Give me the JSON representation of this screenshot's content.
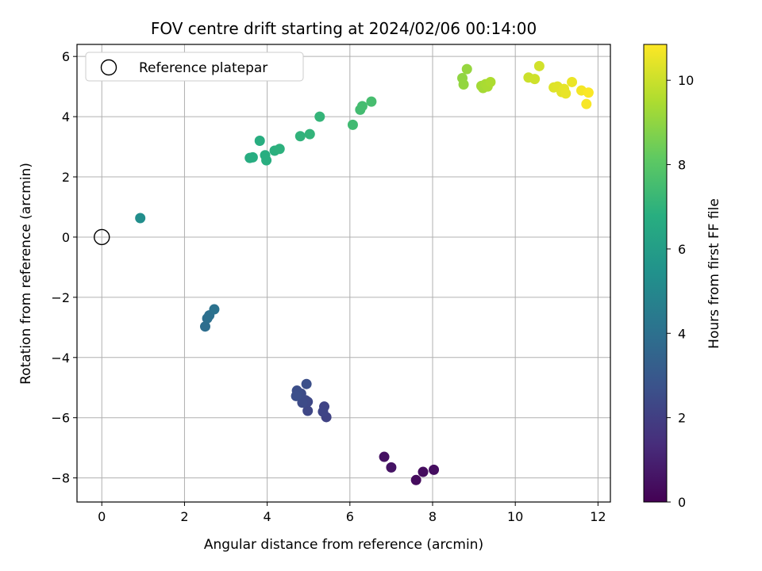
{
  "chart_data": {
    "type": "scatter",
    "title": "FOV centre drift starting at 2024/02/06 00:14:00",
    "xlabel": "Angular distance from reference (arcmin)",
    "ylabel": "Rotation from reference (arcmin)",
    "xlim": [
      -0.6,
      12.3
    ],
    "ylim": [
      -8.8,
      6.4
    ],
    "xticks": [
      0,
      2,
      4,
      6,
      8,
      10,
      12
    ],
    "yticks": [
      -8,
      -6,
      -4,
      -2,
      0,
      2,
      4,
      6
    ],
    "grid": true,
    "legend": {
      "placement": "top-left",
      "entries": [
        "Reference platepar"
      ]
    },
    "reference_point": {
      "x": 0,
      "y": 0,
      "label": "Reference platepar"
    },
    "colorbar": {
      "label": "Hours from first FF file",
      "colormap": "viridis",
      "range": [
        0,
        10.85
      ],
      "ticks": [
        0,
        2,
        4,
        6,
        8,
        10
      ]
    },
    "points": [
      {
        "x": 7.6,
        "y": -8.07,
        "t": 0.3
      },
      {
        "x": 7.77,
        "y": -7.8,
        "t": 0.35
      },
      {
        "x": 8.03,
        "y": -7.73,
        "t": 0.4
      },
      {
        "x": 6.83,
        "y": -7.3,
        "t": 0.5
      },
      {
        "x": 7.0,
        "y": -7.65,
        "t": 0.55
      },
      {
        "x": 5.43,
        "y": -5.98,
        "t": 2.15
      },
      {
        "x": 5.38,
        "y": -5.63,
        "t": 2.2
      },
      {
        "x": 5.35,
        "y": -5.8,
        "t": 2.25
      },
      {
        "x": 4.98,
        "y": -5.77,
        "t": 2.3
      },
      {
        "x": 4.98,
        "y": -5.47,
        "t": 2.35
      },
      {
        "x": 4.93,
        "y": -5.42,
        "t": 2.4
      },
      {
        "x": 4.85,
        "y": -5.5,
        "t": 2.45
      },
      {
        "x": 4.82,
        "y": -5.2,
        "t": 2.5
      },
      {
        "x": 4.72,
        "y": -5.1,
        "t": 2.55
      },
      {
        "x": 4.7,
        "y": -5.28,
        "t": 2.6
      },
      {
        "x": 4.95,
        "y": -4.88,
        "t": 2.65
      },
      {
        "x": 2.5,
        "y": -2.97,
        "t": 3.9
      },
      {
        "x": 2.55,
        "y": -2.7,
        "t": 3.95
      },
      {
        "x": 2.6,
        "y": -2.6,
        "t": 4.0
      },
      {
        "x": 2.72,
        "y": -2.4,
        "t": 4.05
      },
      {
        "x": 0.93,
        "y": 0.63,
        "t": 5.3
      },
      {
        "x": 3.58,
        "y": 2.63,
        "t": 6.7
      },
      {
        "x": 3.65,
        "y": 2.65,
        "t": 6.72
      },
      {
        "x": 3.82,
        "y": 3.2,
        "t": 6.75
      },
      {
        "x": 3.95,
        "y": 2.72,
        "t": 6.78
      },
      {
        "x": 3.98,
        "y": 2.55,
        "t": 6.8
      },
      {
        "x": 4.18,
        "y": 2.87,
        "t": 6.85
      },
      {
        "x": 4.3,
        "y": 2.93,
        "t": 6.9
      },
      {
        "x": 4.8,
        "y": 3.35,
        "t": 7.0
      },
      {
        "x": 5.03,
        "y": 3.42,
        "t": 7.05
      },
      {
        "x": 5.27,
        "y": 4.0,
        "t": 7.1
      },
      {
        "x": 6.07,
        "y": 3.73,
        "t": 7.4
      },
      {
        "x": 6.25,
        "y": 4.23,
        "t": 7.45
      },
      {
        "x": 6.3,
        "y": 4.35,
        "t": 7.5
      },
      {
        "x": 6.52,
        "y": 4.5,
        "t": 7.55
      },
      {
        "x": 8.72,
        "y": 5.28,
        "t": 9.0
      },
      {
        "x": 8.75,
        "y": 5.07,
        "t": 9.05
      },
      {
        "x": 8.83,
        "y": 5.58,
        "t": 9.1
      },
      {
        "x": 9.18,
        "y": 5.02,
        "t": 9.3
      },
      {
        "x": 9.22,
        "y": 4.95,
        "t": 9.35
      },
      {
        "x": 9.28,
        "y": 5.08,
        "t": 9.4
      },
      {
        "x": 9.33,
        "y": 5.0,
        "t": 9.45
      },
      {
        "x": 9.4,
        "y": 5.15,
        "t": 9.5
      },
      {
        "x": 10.32,
        "y": 5.3,
        "t": 10.0
      },
      {
        "x": 10.47,
        "y": 5.25,
        "t": 10.05
      },
      {
        "x": 10.58,
        "y": 5.68,
        "t": 10.1
      },
      {
        "x": 10.93,
        "y": 4.97,
        "t": 10.3
      },
      {
        "x": 11.02,
        "y": 5.0,
        "t": 10.35
      },
      {
        "x": 11.12,
        "y": 4.82,
        "t": 10.4
      },
      {
        "x": 11.18,
        "y": 4.92,
        "t": 10.45
      },
      {
        "x": 11.22,
        "y": 4.77,
        "t": 10.5
      },
      {
        "x": 11.37,
        "y": 5.15,
        "t": 10.55
      },
      {
        "x": 11.6,
        "y": 4.87,
        "t": 10.7
      },
      {
        "x": 11.72,
        "y": 4.42,
        "t": 10.75
      },
      {
        "x": 11.77,
        "y": 4.8,
        "t": 10.8
      }
    ]
  }
}
